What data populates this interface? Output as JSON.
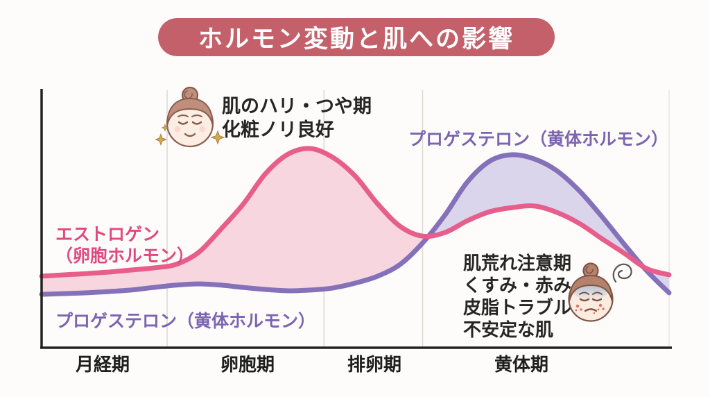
{
  "title": "ホルモン変動と肌への影響",
  "labels": {
    "estrogen_line1": "エストロゲン",
    "estrogen_line2": "（卵胞ホルモン）",
    "progesterone_top": "プロゲステロン（黄体ホルモン）",
    "progesterone_bottom": "プロゲステロン（黄体ホルモン）"
  },
  "annotations": {
    "good_skin_line1": "肌のハリ・つや期",
    "good_skin_line2": "化粧ノリ良好",
    "trouble_line1": "肌荒れ注意期",
    "trouble_line2": "くすみ・赤み",
    "trouble_line3": "皮脂トラブル",
    "trouble_line4": "不安定な肌",
    "good_skin_icon": "happy-face-icon",
    "trouble_icon": "troubled-face-icon"
  },
  "colors": {
    "banner": "#c4606a",
    "estrogen_stroke": "#e75d8c",
    "estrogen_fill": "#f7d6e0",
    "estrogen_label": "#e0497f",
    "progesterone_stroke": "#8471ba",
    "progesterone_fill": "#dbd5ec",
    "progesterone_label": "#7c64b0",
    "axis": "#222222",
    "grid": "#dcd8d2",
    "text": "#252525"
  },
  "chart_data": {
    "type": "area",
    "title": "ホルモン変動と肌への影響",
    "xlabel": "",
    "ylabel": "",
    "x_days": [
      0,
      1,
      2,
      3,
      4,
      5,
      6,
      7,
      8,
      9,
      10,
      11,
      12,
      13,
      14,
      15,
      16,
      17,
      18,
      19,
      20,
      21,
      22,
      23,
      24,
      25,
      26,
      27,
      28
    ],
    "series": [
      {
        "name": "エストロゲン（卵胞ホルモン）",
        "color": "#e75d8c",
        "fill": "#f7d6e0",
        "values": [
          27.6,
          28.1,
          28.6,
          29.2,
          30.0,
          30.8,
          32.2,
          36.8,
          45.9,
          55.7,
          67.6,
          75.1,
          77.3,
          73.8,
          66.5,
          55.7,
          47.0,
          43.2,
          44.6,
          49.2,
          52.7,
          54.3,
          54.9,
          52.4,
          48.1,
          42.2,
          36.5,
          30.5,
          28.1
        ]
      },
      {
        "name": "プロゲステロン（黄体ホルモン）",
        "color": "#8471ba",
        "fill": "#dbd5ec",
        "values": [
          20.5,
          20.8,
          21.1,
          21.6,
          22.2,
          23.2,
          24.1,
          24.6,
          24.1,
          23.2,
          22.4,
          21.9,
          22.2,
          23.0,
          24.9,
          27.6,
          32.2,
          40.5,
          51.4,
          64.3,
          72.4,
          74.9,
          73.2,
          68.6,
          60.8,
          50.8,
          40.0,
          29.7,
          21.1
        ]
      }
    ],
    "ylim": [
      0,
      100
    ],
    "y_scale_shown": false,
    "grid": "vertical phase dividers only",
    "legend_position": "inline curve labels",
    "phases": [
      {
        "label": "月経期",
        "start_day": 0,
        "end_day": 5.6
      },
      {
        "label": "卵胞期",
        "start_day": 5.6,
        "end_day": 12.6
      },
      {
        "label": "排卵期",
        "start_day": 12.6,
        "end_day": 17
      },
      {
        "label": "黄体期",
        "start_day": 17,
        "end_day": 28
      }
    ]
  }
}
